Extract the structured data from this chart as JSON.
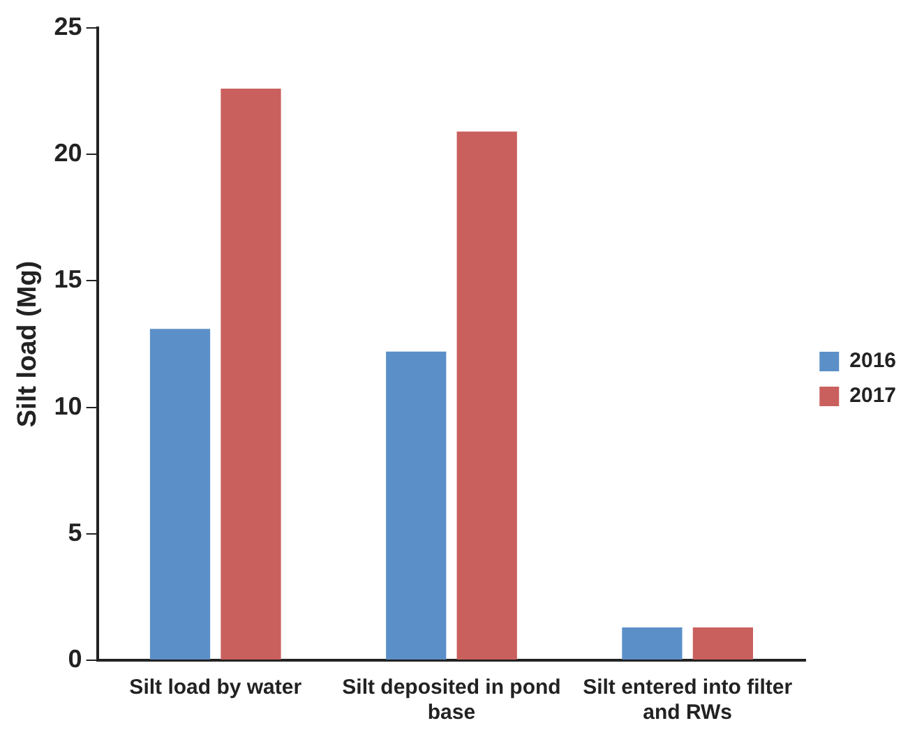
{
  "chart_data": {
    "type": "bar",
    "ylabel": "Silt load (Mg)",
    "categories": [
      "Silt load by water",
      "Silt deposited in pond base",
      "Silt entered into filter and RWs"
    ],
    "series": [
      {
        "name": "2016",
        "color": "#5b8fc8",
        "values": [
          13.1,
          12.2,
          1.3
        ]
      },
      {
        "name": "2017",
        "color": "#c9605e",
        "values": [
          22.6,
          20.9,
          1.3
        ]
      }
    ],
    "ylim": [
      0,
      25
    ],
    "yticks": [
      0,
      5,
      10,
      15,
      20,
      25
    ],
    "grid": false,
    "legend": "right"
  }
}
